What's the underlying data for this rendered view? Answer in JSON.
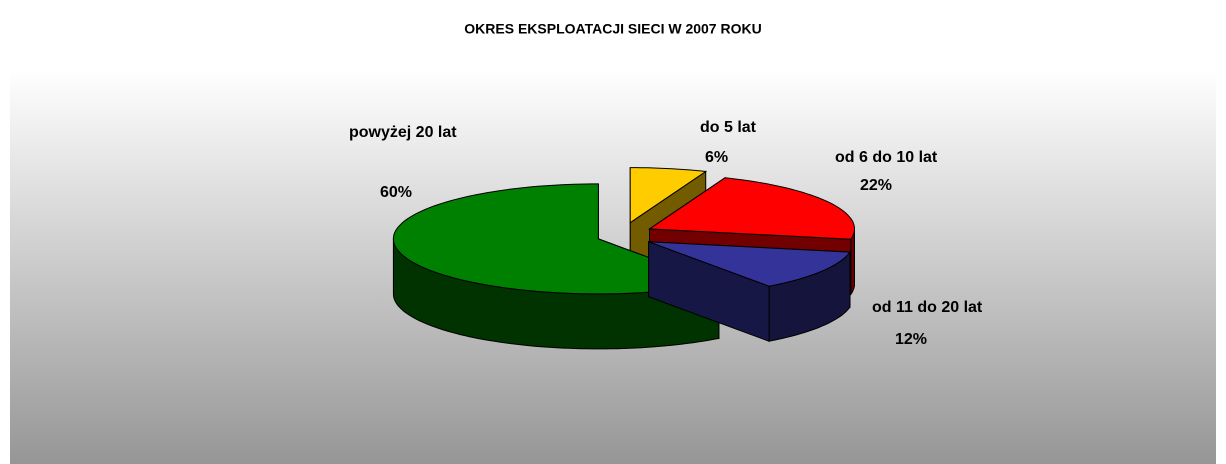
{
  "chart_data": {
    "type": "pie",
    "title": "OKRES EKSPLOATACJI SIECI W 2007 ROKU",
    "categories": [
      "do 5 lat",
      "od 6 do 10 lat",
      "od 11 do 20 lat",
      "powyżej 20 lat"
    ],
    "values": [
      6,
      22,
      12,
      60
    ],
    "value_labels": [
      "6%",
      "22%",
      "12%",
      "60%"
    ],
    "colors": [
      "#ffcc00",
      "#ff0000",
      "#333399",
      "#008000"
    ]
  }
}
